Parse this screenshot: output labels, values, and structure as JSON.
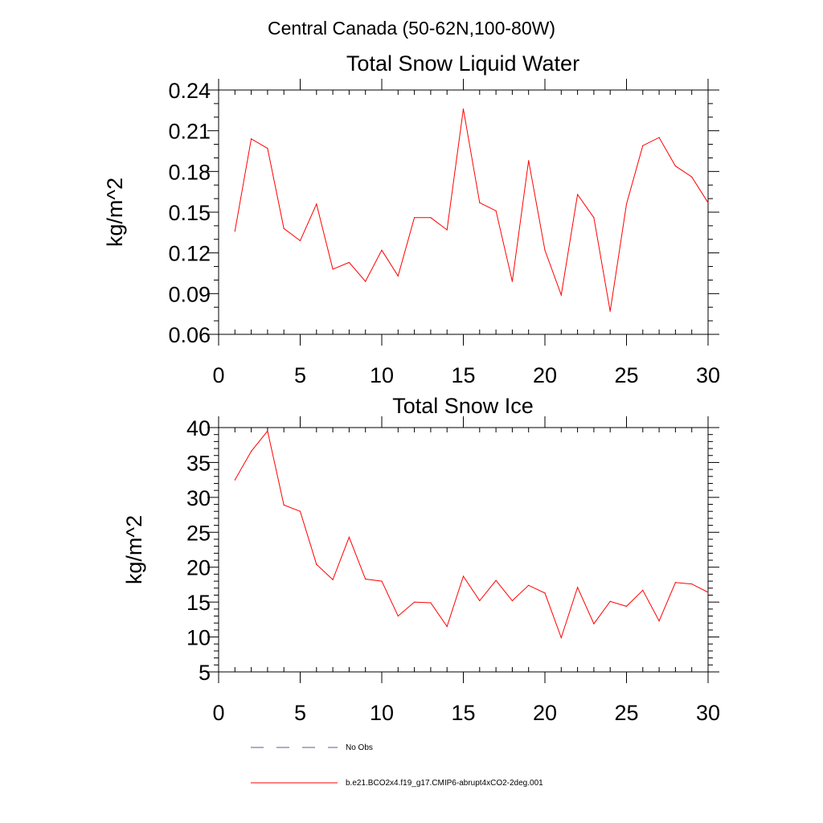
{
  "page": {
    "title": "Central Canada (50-62N,100-80W)"
  },
  "chart_data": [
    {
      "type": "line",
      "title": "Total Snow Liquid Water",
      "xlabel": "",
      "ylabel": "kg/m^2",
      "xlim": [
        0,
        30
      ],
      "ylim": [
        0.06,
        0.24
      ],
      "xticks": [
        0,
        5,
        10,
        15,
        20,
        25,
        30
      ],
      "xtick_labels": [
        "0",
        "5",
        "10",
        "15",
        "20",
        "25",
        "30"
      ],
      "yticks": [
        0.06,
        0.09,
        0.12,
        0.15,
        0.18,
        0.21,
        0.24
      ],
      "ytick_labels": [
        "0.06",
        "0.09",
        "0.12",
        "0.15",
        "0.18",
        "0.21",
        "0.24"
      ],
      "x_minor_step": 1,
      "y_minor_step": 0.01,
      "grid": false,
      "series": [
        {
          "name": "b.e21.BCO2x4.f19_g17.CMIP6-abrupt4xCO2-2deg.001",
          "color": "#ff0000",
          "x": [
            1,
            2,
            3,
            4,
            5,
            6,
            7,
            8,
            9,
            10,
            11,
            12,
            13,
            14,
            15,
            16,
            17,
            18,
            19,
            20,
            21,
            22,
            23,
            24,
            25,
            26,
            27,
            28,
            29,
            30
          ],
          "values": [
            0.136,
            0.204,
            0.197,
            0.138,
            0.129,
            0.156,
            0.108,
            0.113,
            0.099,
            0.122,
            0.103,
            0.146,
            0.146,
            0.137,
            0.226,
            0.157,
            0.151,
            0.099,
            0.188,
            0.122,
            0.089,
            0.163,
            0.146,
            0.077,
            0.156,
            0.199,
            0.205,
            0.184,
            0.176,
            0.157
          ]
        }
      ]
    },
    {
      "type": "line",
      "title": "Total Snow Ice",
      "xlabel": "",
      "ylabel": "kg/m^2",
      "xlim": [
        0,
        30
      ],
      "ylim": [
        5,
        40
      ],
      "xticks": [
        0,
        5,
        10,
        15,
        20,
        25,
        30
      ],
      "xtick_labels": [
        "0",
        "5",
        "10",
        "15",
        "20",
        "25",
        "30"
      ],
      "yticks": [
        5,
        10,
        15,
        20,
        25,
        30,
        35,
        40
      ],
      "ytick_labels": [
        "5",
        "10",
        "15",
        "20",
        "25",
        "30",
        "35",
        "40"
      ],
      "x_minor_step": 1,
      "y_minor_step": 1,
      "grid": false,
      "series": [
        {
          "name": "b.e21.BCO2x4.f19_g17.CMIP6-abrupt4xCO2-2deg.001",
          "color": "#ff0000",
          "x": [
            1,
            2,
            3,
            4,
            5,
            6,
            7,
            8,
            9,
            10,
            11,
            12,
            13,
            14,
            15,
            16,
            17,
            18,
            19,
            20,
            21,
            22,
            23,
            24,
            25,
            26,
            27,
            28,
            29,
            30
          ],
          "values": [
            32.5,
            36.6,
            39.5,
            28.9,
            28.0,
            20.4,
            18.2,
            24.3,
            18.3,
            18.0,
            13.0,
            15.0,
            14.9,
            11.5,
            18.7,
            15.2,
            18.1,
            15.2,
            17.4,
            16.3,
            9.9,
            17.1,
            11.9,
            15.1,
            14.4,
            16.7,
            12.3,
            17.8,
            17.6,
            16.4
          ]
        }
      ]
    }
  ],
  "legend": {
    "placement": "bottom-left",
    "items": [
      {
        "label": "No Obs",
        "color": "#5a5a8c",
        "style": "dashed"
      },
      {
        "label": "b.e21.BCO2x4.f19_g17.CMIP6-abrupt4xCO2-2deg.001",
        "color": "#ff0000",
        "style": "solid"
      }
    ]
  }
}
